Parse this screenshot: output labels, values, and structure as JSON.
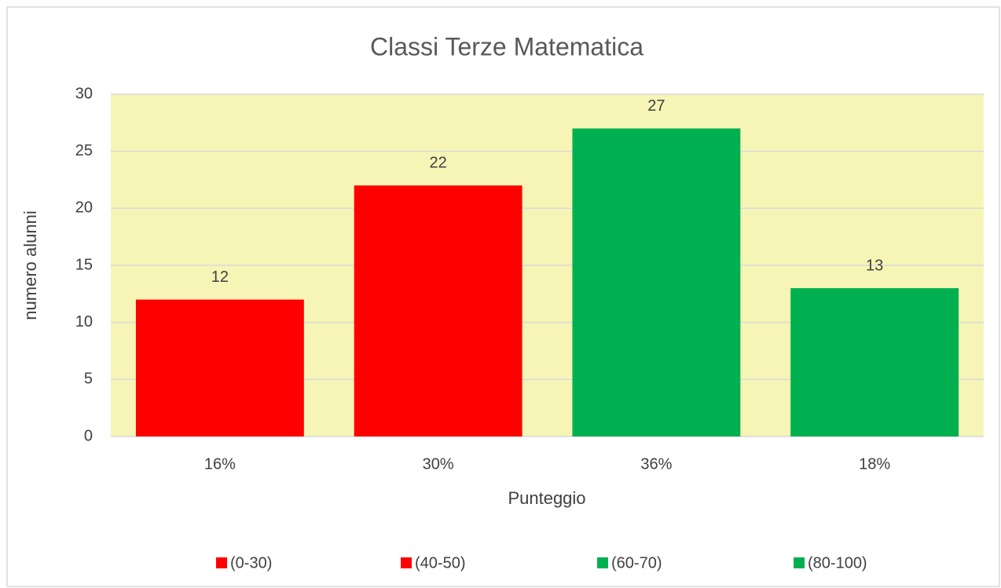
{
  "chart_data": {
    "type": "bar",
    "title": "Classi Terze Matematica",
    "x_label": "Punteggio",
    "y_label": "numero alunni",
    "categories": [
      "16%",
      "30%",
      "36%",
      "18%"
    ],
    "values": [
      12,
      22,
      27,
      13
    ],
    "colors": [
      "#ff0000",
      "#ff0000",
      "#00b050",
      "#00b050"
    ],
    "legend": [
      "(0-30)",
      "(40-50)",
      "(60-70)",
      "(80-100)"
    ],
    "plot_background": "#f6f5b6",
    "ylim": [
      0,
      30
    ],
    "yticks": [
      0,
      5,
      10,
      15,
      20,
      25,
      30
    ],
    "grid": true,
    "legend_position": "bottom"
  }
}
